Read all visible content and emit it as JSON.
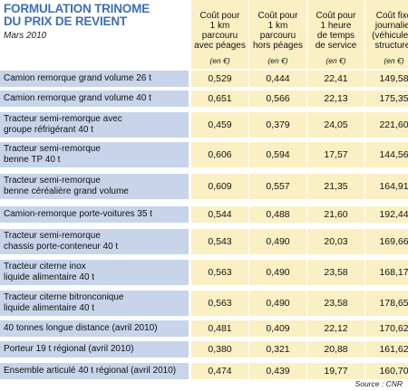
{
  "title_line1": "FORMULATION TRINOME",
  "title_line2": "DU PRIX DE REVIENT",
  "subtitle": "Mars 2010",
  "source": "Source : CNR",
  "colors": {
    "label_bg": "#c8d4ea",
    "cell_bg": "#fbf0c4",
    "title": "#3d6fb3"
  },
  "chart_data": {
    "type": "table",
    "title": "FORMULATION TRINOME DU PRIX DE REVIENT",
    "subtitle": "Mars 2010",
    "columns": [
      {
        "lines": [
          "Coût pour",
          "1 km",
          "parcouru",
          "avec péages"
        ],
        "unit": "(en €)"
      },
      {
        "lines": [
          "Coût pour",
          "1 km",
          "parcouru",
          "hors péages"
        ],
        "unit": "(en €)"
      },
      {
        "lines": [
          "Coût pour",
          "1 heure",
          "de temps",
          "de service"
        ],
        "unit": "(en €)"
      },
      {
        "lines": [
          "Coût fixe",
          "journalier",
          "(véhicule +",
          "structure)"
        ],
        "unit": "(en €)"
      }
    ],
    "rows": [
      {
        "label": [
          "Camion remorque grand volume 26 t"
        ],
        "values": [
          "0,529",
          "0,444",
          "22,41",
          "149,58"
        ]
      },
      {
        "label": [
          "Camion remorque grand volume 40 t"
        ],
        "values": [
          "0,651",
          "0,566",
          "22,13",
          "175,35"
        ]
      },
      {
        "label": [
          "Tracteur semi-remorque avec",
          "groupe réfrigérant 40 t"
        ],
        "values": [
          "0,459",
          "0,379",
          "24,05",
          "221,60"
        ]
      },
      {
        "label": [
          "Tracteur semi-remorque",
          "benne TP 40 t"
        ],
        "values": [
          "0,606",
          "0,594",
          "17,57",
          "144,56"
        ]
      },
      {
        "label": [
          "Tracteur semi-remorque",
          "benne céréalière grand volume"
        ],
        "values": [
          "0,609",
          "0,557",
          "21,35",
          "164,91"
        ]
      },
      {
        "label": [
          "Camion-remorque porte-voitures 35 t"
        ],
        "values": [
          "0,544",
          "0,488",
          "21,60",
          "192,44"
        ]
      },
      {
        "label": [
          "Tracteur semi-remorque",
          "chassis porte-conteneur 40 t"
        ],
        "values": [
          "0,543",
          "0,490",
          "20,03",
          "169,66"
        ]
      },
      {
        "label": [
          "Tracteur citerne inox",
          "liquide alimentaire 40 t"
        ],
        "values": [
          "0,563",
          "0,490",
          "23,58",
          "168,17"
        ]
      },
      {
        "label": [
          "Tracteur citerne bitronconique",
          "liquide alimentaire 40 t"
        ],
        "values": [
          "0,563",
          "0,490",
          "23,58",
          "178,65"
        ]
      },
      {
        "label": [
          "40 tonnes longue distance (avril 2010)"
        ],
        "values": [
          "0,481",
          "0,409",
          "22,12",
          "170,62"
        ]
      },
      {
        "label": [
          "Porteur 19 t régional (avril 2010)"
        ],
        "values": [
          "0,380",
          "0,321",
          "20,88",
          "161,62"
        ]
      },
      {
        "label": [
          "Ensemble articulé 40 t régional (avril  2010)"
        ],
        "values": [
          "0,474",
          "0,439",
          "19,77",
          "160,70"
        ]
      }
    ]
  }
}
